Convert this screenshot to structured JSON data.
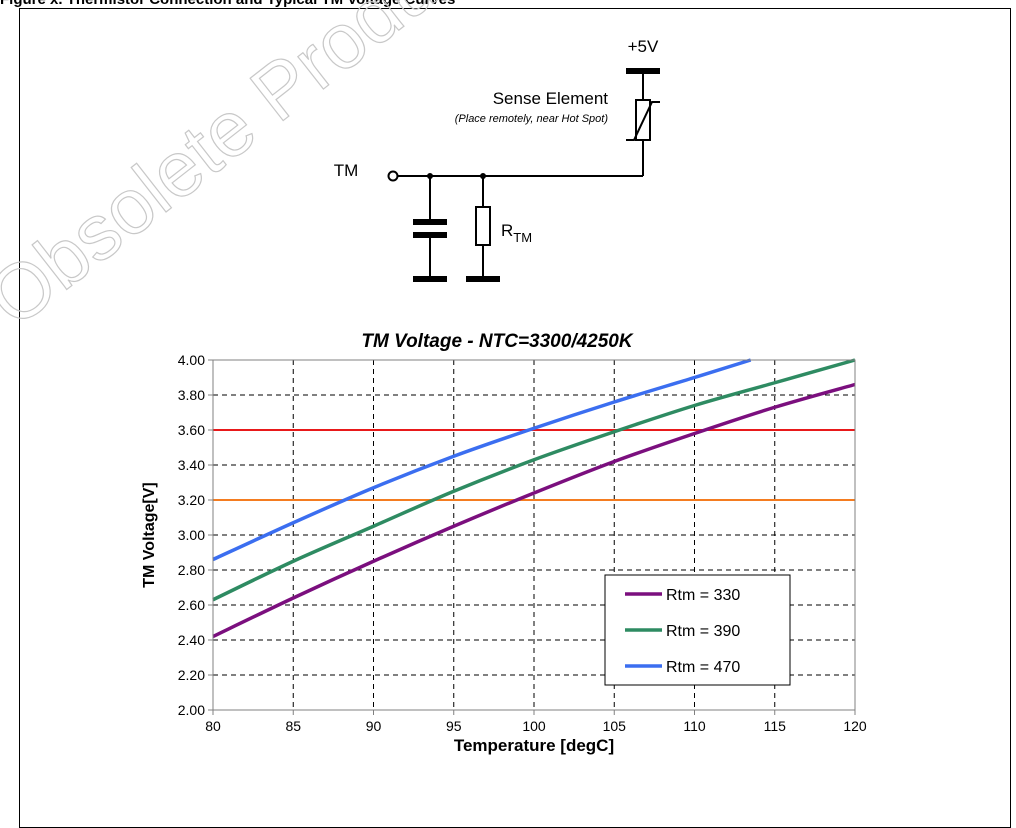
{
  "figure": {
    "heading": "Figure x. Thermistor Connection and Typical TM Voltage Curves",
    "watermark": "Obsolete Product(s) - Obsolete Product(s)"
  },
  "schematic": {
    "supply_label": "+5V",
    "sense_title": "Sense Element",
    "sense_note": "(Place remotely, near Hot Spot)",
    "pin_label": "TM",
    "resistor_label": "R",
    "resistor_subscript": "TM"
  },
  "chart_data": {
    "type": "line",
    "title": "TM Voltage - NTC=3300/4250K",
    "xlabel": "Temperature [degC]",
    "ylabel": "TM Voltage[V]",
    "xlim": [
      80,
      120
    ],
    "ylim": [
      2.0,
      4.0
    ],
    "x_ticks": [
      "80",
      "85",
      "90",
      "95",
      "100",
      "105",
      "110",
      "115",
      "120"
    ],
    "y_ticks": [
      "2.00",
      "2.20",
      "2.40",
      "2.60",
      "2.80",
      "3.00",
      "3.20",
      "3.40",
      "3.60",
      "3.80",
      "4.00"
    ],
    "grid": true,
    "legend_position": "bottom-right",
    "threshold_lines": [
      {
        "y": 3.6,
        "color": "#e8191a"
      },
      {
        "y": 3.2,
        "color": "#f47c20"
      }
    ],
    "series": [
      {
        "name": "Rtm = 330",
        "color": "#7b0f7e",
        "x": [
          80,
          85,
          90,
          95,
          100,
          105,
          110,
          115,
          120
        ],
        "y": [
          2.42,
          2.64,
          2.85,
          3.05,
          3.24,
          3.42,
          3.58,
          3.73,
          3.86
        ]
      },
      {
        "name": "Rtm = 390",
        "color": "#2e8b62",
        "x": [
          80,
          85,
          90,
          95,
          100,
          105,
          110,
          115,
          120
        ],
        "y": [
          2.63,
          2.85,
          3.05,
          3.25,
          3.43,
          3.59,
          3.74,
          3.87,
          4.0
        ]
      },
      {
        "name": "Rtm = 470",
        "color": "#3b6ef0",
        "x": [
          80,
          85,
          90,
          95,
          100,
          105,
          110,
          113.5
        ],
        "y": [
          2.86,
          3.07,
          3.27,
          3.45,
          3.61,
          3.76,
          3.9,
          4.0
        ]
      }
    ]
  }
}
